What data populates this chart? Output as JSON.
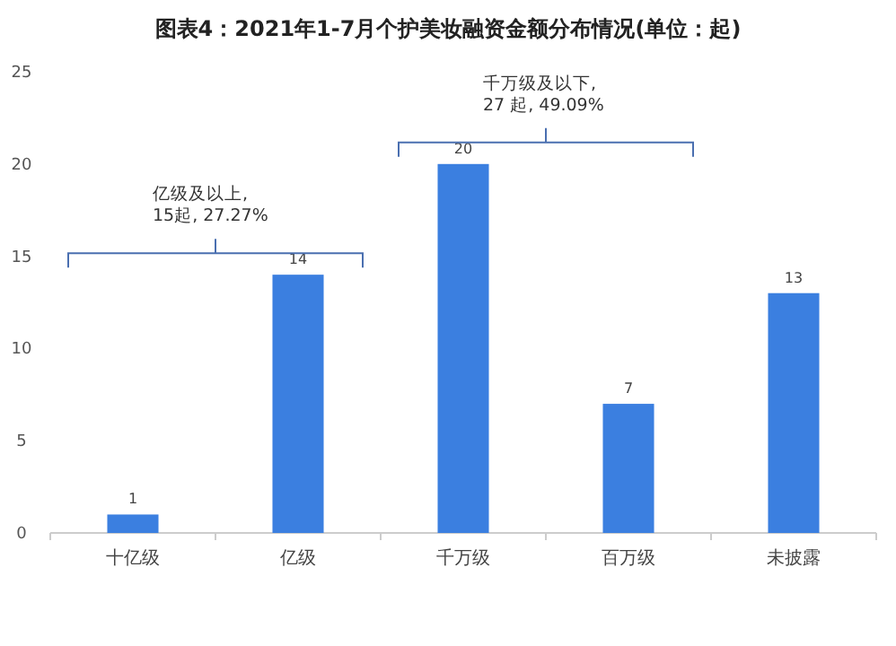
{
  "chart_data": {
    "type": "bar",
    "title": "图表4：2021年1-7月个护美妆融资金额分布情况(单位：起)",
    "categories": [
      "十亿级",
      "亿级",
      "千万级",
      "百万级",
      "未披露"
    ],
    "series": [
      {
        "color": "#3b7fe0",
        "values": [
          1,
          14,
          20,
          7,
          13
        ]
      }
    ],
    "ylim": [
      0,
      25
    ],
    "yticks": [
      0,
      5,
      10,
      15,
      20,
      25
    ],
    "data_labels": true,
    "annotations": [
      "亿级及以上,\n15起, 27.27%",
      "千万级及以下,\n27 起, 49.09%"
    ]
  }
}
